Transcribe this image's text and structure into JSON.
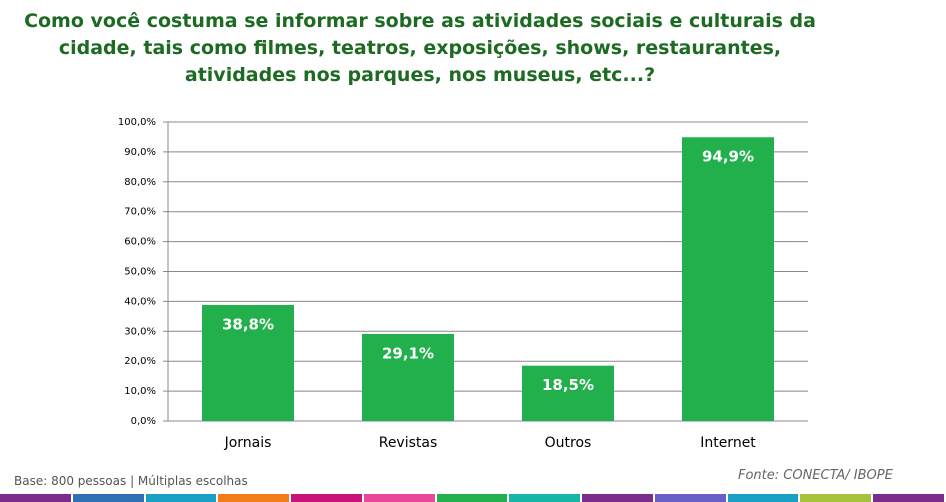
{
  "chart_data": {
    "type": "bar",
    "title": "Como você costuma se informar sobre as atividades sociais e culturais da cidade, tais como filmes, teatros, exposições, shows, restaurantes, atividades nos parques, nos museus, etc...?",
    "categories": [
      "Jornais",
      "Revistas",
      "Outros",
      "Internet"
    ],
    "values": [
      38.8,
      29.1,
      18.5,
      94.9
    ],
    "value_labels": [
      "38,8%",
      "29,1%",
      "18,5%",
      "94,9%"
    ],
    "color": "#21b04b",
    "ylim": [
      0,
      100
    ],
    "yticks": [
      {
        "value": 0,
        "label": "0,0%"
      },
      {
        "value": 10,
        "label": "10,0%"
      },
      {
        "value": 20,
        "label": "20,0%"
      },
      {
        "value": 30,
        "label": "30,0%"
      },
      {
        "value": 40,
        "label": "40,0%"
      },
      {
        "value": 50,
        "label": "50,0%"
      },
      {
        "value": 60,
        "label": "60,0%"
      },
      {
        "value": 70,
        "label": "70,0%"
      },
      {
        "value": 80,
        "label": "80,0%"
      },
      {
        "value": 90,
        "label": "90,0%"
      },
      {
        "value": 100,
        "label": "100,0%"
      }
    ],
    "grid": true,
    "note": "Base: 800   pessoas | Múltiplas escolhas",
    "source": "Fonte: CONECTA/ IBOPE"
  }
}
